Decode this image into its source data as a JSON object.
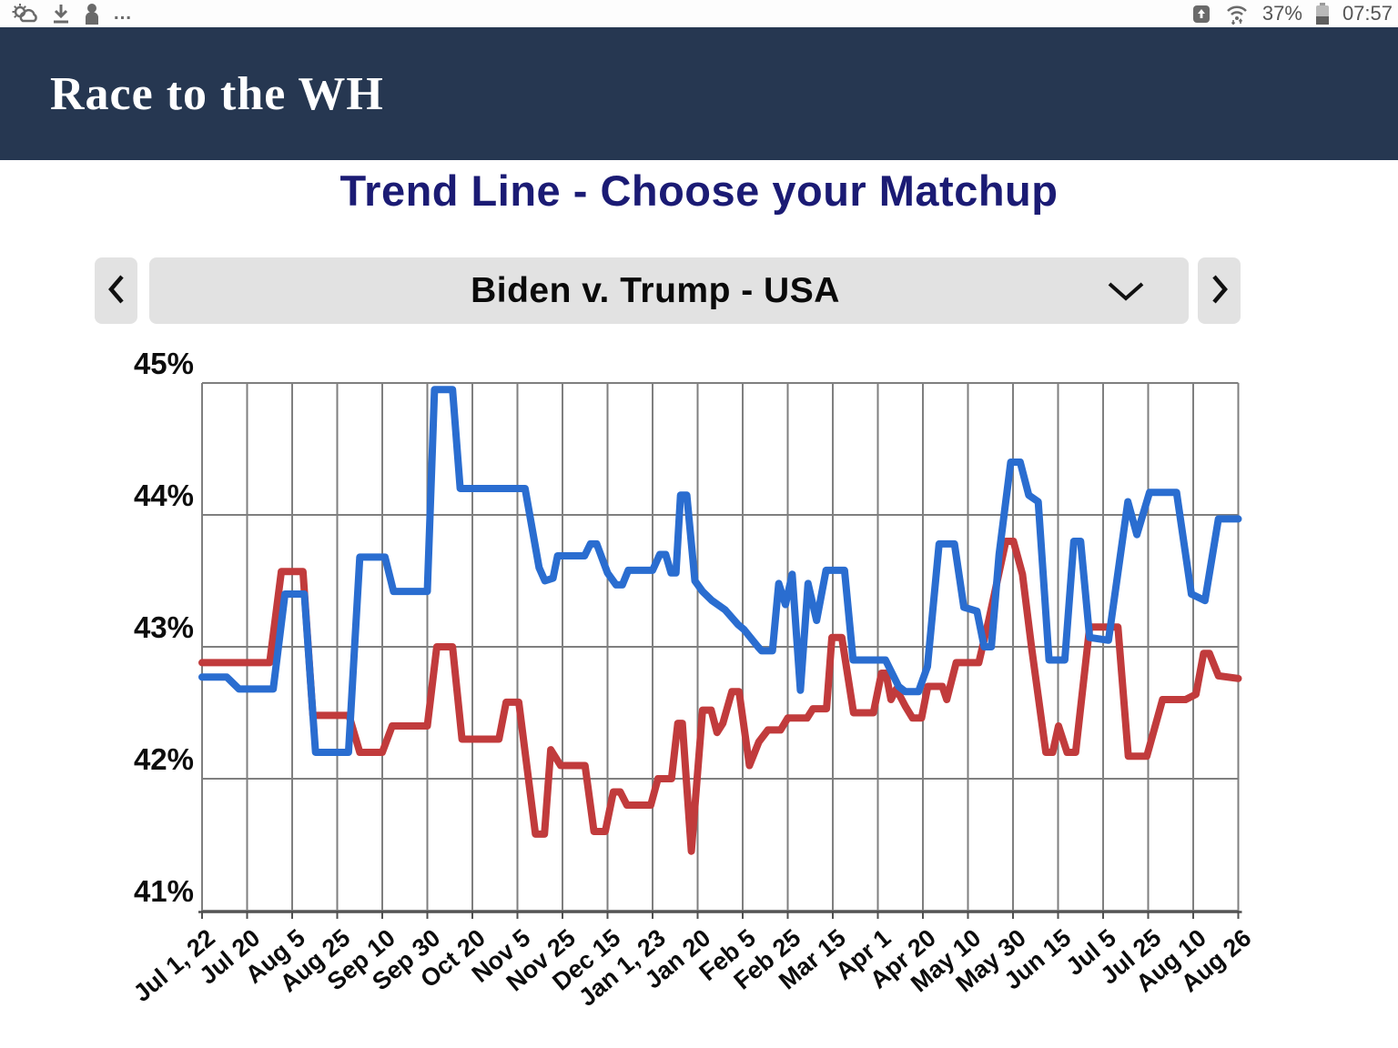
{
  "status_bar": {
    "more_label": "…",
    "battery_percent": "37%",
    "time": "07:57",
    "icon_color": "#6a6a6a"
  },
  "header": {
    "title": "Race to the WH",
    "bg_color": "#263751",
    "text_color": "#ffffff"
  },
  "page": {
    "title": "Trend Line - Choose your Matchup",
    "title_color": "#1b1b74"
  },
  "matchup_selector": {
    "value": "Biden v. Trump - USA",
    "prev_action": "previous-matchup",
    "next_action": "next-matchup"
  },
  "chart_data": {
    "type": "line",
    "title": "Biden v. Trump - USA trend line",
    "xlabel": "",
    "ylabel": "",
    "ylim": [
      41,
      45
    ],
    "grid": true,
    "legend_position": "none",
    "y_tick_labels": [
      "45%",
      "44%",
      "43%",
      "42%",
      "41%"
    ],
    "x_tick_labels": [
      "Jul 1, 22",
      "Jul 20",
      "Aug 5",
      "Aug 25",
      "Sep 10",
      "Sep 30",
      "Oct 20",
      "Nov 5",
      "Nov 25",
      "Dec 15",
      "Jan 1, 23",
      "Jan 20",
      "Feb 5",
      "Feb 25",
      "Mar 15",
      "Apr 1",
      "Apr 20",
      "May 10",
      "May 30",
      "Jun 15",
      "Jul 5",
      "Jul 25",
      "Aug 10",
      "Aug 26"
    ],
    "axis_color": "#4f4f4f",
    "grid_color": "#7f7f7f",
    "series": [
      {
        "name": "Biden",
        "color": "#2a6dd0",
        "points": [
          [
            0,
            42.77
          ],
          [
            0.55,
            42.77
          ],
          [
            0.82,
            42.68
          ],
          [
            1.58,
            42.68
          ],
          [
            1.84,
            43.4
          ],
          [
            2.27,
            43.4
          ],
          [
            2.52,
            42.2
          ],
          [
            3.25,
            42.2
          ],
          [
            3.5,
            43.68
          ],
          [
            4.06,
            43.68
          ],
          [
            4.25,
            43.42
          ],
          [
            5.0,
            43.42
          ],
          [
            5.16,
            44.95
          ],
          [
            5.56,
            44.95
          ],
          [
            5.73,
            44.2
          ],
          [
            7.17,
            44.2
          ],
          [
            7.48,
            43.6
          ],
          [
            7.61,
            43.5
          ],
          [
            7.79,
            43.52
          ],
          [
            7.89,
            43.69
          ],
          [
            8.49,
            43.69
          ],
          [
            8.62,
            43.78
          ],
          [
            8.76,
            43.78
          ],
          [
            9.0,
            43.56
          ],
          [
            9.19,
            43.47
          ],
          [
            9.33,
            43.47
          ],
          [
            9.46,
            43.58
          ],
          [
            10.0,
            43.58
          ],
          [
            10.16,
            43.7
          ],
          [
            10.29,
            43.7
          ],
          [
            10.41,
            43.56
          ],
          [
            10.52,
            43.56
          ],
          [
            10.62,
            44.15
          ],
          [
            10.76,
            44.15
          ],
          [
            10.94,
            43.5
          ],
          [
            11.11,
            43.42
          ],
          [
            11.32,
            43.35
          ],
          [
            11.61,
            43.28
          ],
          [
            11.89,
            43.17
          ],
          [
            12.03,
            43.13
          ],
          [
            12.34,
            43.0
          ],
          [
            12.42,
            42.97
          ],
          [
            12.66,
            42.97
          ],
          [
            12.8,
            43.48
          ],
          [
            12.95,
            43.32
          ],
          [
            13.1,
            43.55
          ],
          [
            13.28,
            42.67
          ],
          [
            13.45,
            43.48
          ],
          [
            13.64,
            43.2
          ],
          [
            13.85,
            43.58
          ],
          [
            14.26,
            43.58
          ],
          [
            14.45,
            42.9
          ],
          [
            15.17,
            42.9
          ],
          [
            15.46,
            42.7
          ],
          [
            15.61,
            42.66
          ],
          [
            15.9,
            42.66
          ],
          [
            16.1,
            42.85
          ],
          [
            16.36,
            43.78
          ],
          [
            16.7,
            43.78
          ],
          [
            16.91,
            43.3
          ],
          [
            17.2,
            43.27
          ],
          [
            17.36,
            43.0
          ],
          [
            17.52,
            43.0
          ],
          [
            17.69,
            43.7
          ],
          [
            17.95,
            44.4
          ],
          [
            18.16,
            44.4
          ],
          [
            18.35,
            44.15
          ],
          [
            18.56,
            44.1
          ],
          [
            18.8,
            42.9
          ],
          [
            19.15,
            42.9
          ],
          [
            19.35,
            43.8
          ],
          [
            19.5,
            43.8
          ],
          [
            19.7,
            43.07
          ],
          [
            20.12,
            43.05
          ],
          [
            20.55,
            44.1
          ],
          [
            20.75,
            43.85
          ],
          [
            21.03,
            44.17
          ],
          [
            21.63,
            44.17
          ],
          [
            21.96,
            43.4
          ],
          [
            22.26,
            43.35
          ],
          [
            22.56,
            43.97
          ],
          [
            23,
            43.97
          ]
        ]
      },
      {
        "name": "Trump",
        "color": "#c13b3c",
        "points": [
          [
            0,
            42.88
          ],
          [
            1.5,
            42.88
          ],
          [
            1.76,
            43.57
          ],
          [
            2.24,
            43.57
          ],
          [
            2.46,
            42.48
          ],
          [
            3.26,
            42.48
          ],
          [
            3.5,
            42.2
          ],
          [
            4.0,
            42.2
          ],
          [
            4.22,
            42.4
          ],
          [
            5.0,
            42.4
          ],
          [
            5.21,
            43.0
          ],
          [
            5.56,
            43.0
          ],
          [
            5.77,
            42.3
          ],
          [
            6.59,
            42.3
          ],
          [
            6.75,
            42.58
          ],
          [
            7.03,
            42.58
          ],
          [
            7.4,
            41.58
          ],
          [
            7.6,
            41.58
          ],
          [
            7.74,
            42.22
          ],
          [
            7.96,
            42.1
          ],
          [
            8.5,
            42.1
          ],
          [
            8.7,
            41.6
          ],
          [
            8.95,
            41.6
          ],
          [
            9.13,
            41.9
          ],
          [
            9.28,
            41.9
          ],
          [
            9.43,
            41.8
          ],
          [
            9.96,
            41.8
          ],
          [
            10.12,
            42.0
          ],
          [
            10.42,
            42.0
          ],
          [
            10.56,
            42.42
          ],
          [
            10.66,
            42.42
          ],
          [
            10.86,
            41.45
          ],
          [
            11.11,
            42.52
          ],
          [
            11.3,
            42.52
          ],
          [
            11.43,
            42.35
          ],
          [
            11.56,
            42.42
          ],
          [
            11.76,
            42.66
          ],
          [
            11.92,
            42.66
          ],
          [
            12.15,
            42.1
          ],
          [
            12.36,
            42.28
          ],
          [
            12.56,
            42.37
          ],
          [
            12.84,
            42.37
          ],
          [
            13.0,
            42.46
          ],
          [
            13.43,
            42.46
          ],
          [
            13.56,
            42.53
          ],
          [
            13.86,
            42.53
          ],
          [
            13.98,
            43.07
          ],
          [
            14.2,
            43.07
          ],
          [
            14.46,
            42.5
          ],
          [
            14.9,
            42.5
          ],
          [
            15.08,
            42.8
          ],
          [
            15.18,
            42.8
          ],
          [
            15.29,
            42.6
          ],
          [
            15.41,
            42.68
          ],
          [
            15.61,
            42.55
          ],
          [
            15.77,
            42.46
          ],
          [
            15.97,
            42.46
          ],
          [
            16.11,
            42.7
          ],
          [
            16.43,
            42.7
          ],
          [
            16.53,
            42.6
          ],
          [
            16.74,
            42.88
          ],
          [
            17.24,
            42.88
          ],
          [
            17.46,
            43.2
          ],
          [
            17.84,
            43.8
          ],
          [
            18.01,
            43.8
          ],
          [
            18.21,
            43.55
          ],
          [
            18.41,
            43.0
          ],
          [
            18.73,
            42.2
          ],
          [
            18.88,
            42.2
          ],
          [
            19.01,
            42.4
          ],
          [
            19.2,
            42.2
          ],
          [
            19.39,
            42.2
          ],
          [
            19.7,
            43.15
          ],
          [
            20.33,
            43.15
          ],
          [
            20.56,
            42.17
          ],
          [
            20.97,
            42.17
          ],
          [
            21.32,
            42.6
          ],
          [
            21.83,
            42.6
          ],
          [
            22.06,
            42.64
          ],
          [
            22.23,
            42.95
          ],
          [
            22.36,
            42.95
          ],
          [
            22.56,
            42.78
          ],
          [
            23,
            42.76
          ]
        ]
      }
    ]
  }
}
